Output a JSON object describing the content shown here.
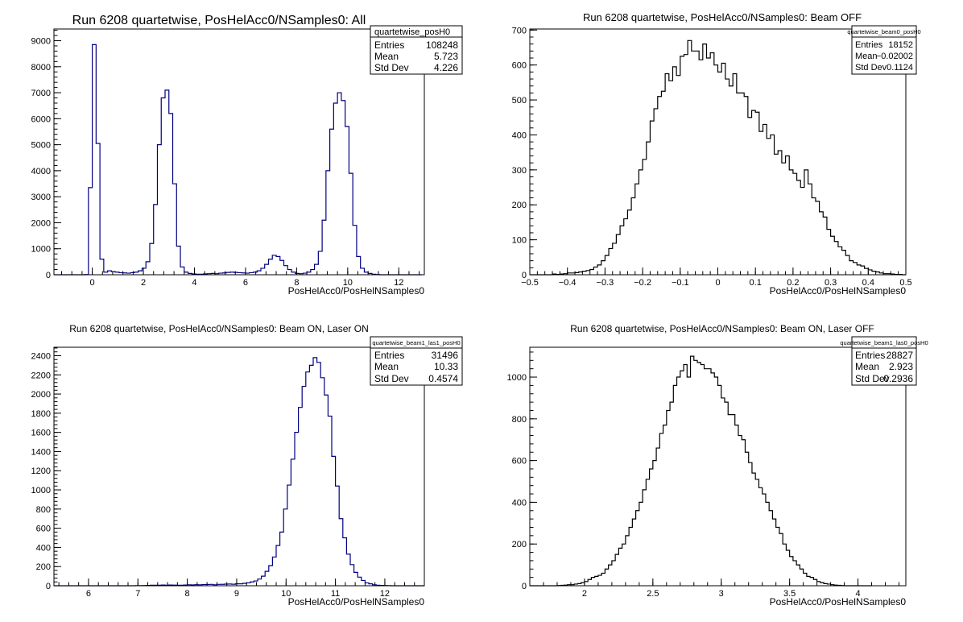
{
  "chart_data": [
    {
      "type": "bar",
      "title": "Run 6208 quartetwise, PosHelAcc0/NSamples0: All",
      "xlabel": "PosHelAcc0/PosHelNSamples0",
      "ylabel": "",
      "xlim": [
        -1.5,
        13.0
      ],
      "ylim": [
        0,
        9450
      ],
      "xticks": [
        0,
        2,
        4,
        6,
        8,
        10,
        12
      ],
      "xtick_labels": [
        "0",
        "2",
        "4",
        "6",
        "8",
        "10",
        "12"
      ],
      "yticks": [
        0,
        1000,
        2000,
        3000,
        4000,
        5000,
        6000,
        7000,
        8000,
        9000
      ],
      "ytick_labels": [
        "0",
        "1000",
        "2000",
        "3000",
        "4000",
        "5000",
        "6000",
        "7000",
        "8000",
        "9000"
      ],
      "grid": false,
      "line_color": "#000080",
      "stats": {
        "name": "quartetwise_posH0",
        "rows": [
          {
            "label": "Entries",
            "value": "108248"
          },
          {
            "label": "Mean",
            "value": "5.723"
          },
          {
            "label": "Std Dev",
            "value": "4.226"
          }
        ]
      },
      "series": [
        {
          "x0": -1.5,
          "bin_width": 0.15,
          "values": [
            0,
            0,
            0,
            0,
            0,
            0,
            0,
            0,
            10,
            3350,
            8850,
            5050,
            600,
            100,
            150,
            120,
            100,
            80,
            70,
            60,
            80,
            100,
            150,
            250,
            500,
            1200,
            2700,
            5000,
            6800,
            7100,
            6200,
            3500,
            1100,
            300,
            100,
            50,
            30,
            20,
            20,
            30,
            40,
            50,
            40,
            60,
            70,
            90,
            100,
            90,
            80,
            70,
            60,
            80,
            100,
            150,
            250,
            400,
            600,
            750,
            700,
            550,
            350,
            200,
            100,
            50,
            40,
            60,
            100,
            200,
            400,
            900,
            2100,
            4000,
            5600,
            6600,
            7000,
            6700,
            5700,
            3900,
            1900,
            700,
            250,
            100,
            50,
            20,
            10,
            0,
            0,
            0,
            0,
            0,
            0,
            0,
            0,
            0,
            0,
            0
          ]
        }
      ]
    },
    {
      "type": "bar",
      "title": "Run 6208 quartetwise, PosHelAcc0/NSamples0: Beam OFF",
      "xlabel": "PosHelAcc0/PosHelNSamples0",
      "ylabel": "",
      "xlim": [
        -0.5,
        0.5
      ],
      "ylim": [
        0,
        703
      ],
      "xticks": [
        -0.5,
        -0.4,
        -0.3,
        -0.2,
        -0.1,
        0,
        0.1,
        0.2,
        0.3,
        0.4,
        0.5
      ],
      "xtick_labels": [
        "−0.5",
        "−0.4",
        "−0.3",
        "−0.2",
        "−0.1",
        "0",
        "0.1",
        "0.2",
        "0.3",
        "0.4",
        "0.5"
      ],
      "yticks": [
        0,
        100,
        200,
        300,
        400,
        500,
        600,
        700
      ],
      "ytick_labels": [
        "0",
        "100",
        "200",
        "300",
        "400",
        "500",
        "600",
        "700"
      ],
      "grid": false,
      "line_color": "#000000",
      "stats": {
        "name": "quartetwise_beam0_posH0",
        "rows": [
          {
            "label": "Entries",
            "value": "18152"
          },
          {
            "label": "Mean",
            "value": "−0.02002"
          },
          {
            "label": "Std Dev",
            "value": "0.1124"
          }
        ]
      },
      "series": [
        {
          "x0": -0.5,
          "bin_width": 0.01,
          "values": [
            0,
            0,
            0,
            0,
            0,
            0,
            2,
            1,
            2,
            3,
            5,
            5,
            6,
            8,
            10,
            12,
            15,
            22,
            28,
            40,
            55,
            75,
            90,
            115,
            140,
            160,
            185,
            220,
            260,
            300,
            330,
            380,
            440,
            475,
            510,
            525,
            575,
            555,
            595,
            570,
            625,
            630,
            670,
            640,
            640,
            615,
            660,
            620,
            635,
            600,
            580,
            605,
            560,
            540,
            575,
            520,
            520,
            510,
            450,
            470,
            465,
            410,
            430,
            390,
            400,
            345,
            355,
            320,
            340,
            300,
            290,
            270,
            250,
            300,
            260,
            220,
            210,
            180,
            165,
            130,
            110,
            95,
            80,
            70,
            55,
            40,
            35,
            28,
            25,
            18,
            14,
            10,
            8,
            5,
            3,
            3,
            2,
            1,
            1,
            0
          ]
        }
      ]
    },
    {
      "type": "bar",
      "title": "Run 6208 quartetwise, PosHelAcc0/NSamples0: Beam ON, Laser ON",
      "xlabel": "PosHelAcc0/PosHelNSamples0",
      "ylabel": "",
      "xlim": [
        5.3,
        12.8
      ],
      "ylim": [
        0,
        2488
      ],
      "xticks": [
        6,
        7,
        8,
        9,
        10,
        11,
        12
      ],
      "xtick_labels": [
        "6",
        "7",
        "8",
        "9",
        "10",
        "11",
        "12"
      ],
      "yticks": [
        0,
        200,
        400,
        600,
        800,
        1000,
        1200,
        1400,
        1600,
        1800,
        2000,
        2200,
        2400
      ],
      "ytick_labels": [
        "0",
        "200",
        "400",
        "600",
        "800",
        "1000",
        "1200",
        "1400",
        "1600",
        "1800",
        "2000",
        "2200",
        "2400"
      ],
      "grid": false,
      "line_color": "#000080",
      "stats": {
        "name": "quartetwise_beam1_las1_posH0",
        "rows": [
          {
            "label": "Entries",
            "value": "31496"
          },
          {
            "label": "Mean",
            "value": "10.33"
          },
          {
            "label": "Std Dev",
            "value": "0.4574"
          }
        ]
      },
      "series": [
        {
          "x0": 5.3,
          "bin_width": 0.075,
          "values": [
            0,
            0,
            0,
            0,
            0,
            0,
            0,
            0,
            0,
            0,
            0,
            0,
            0,
            0,
            0,
            0,
            0,
            0,
            0,
            0,
            0,
            0,
            1,
            1,
            2,
            3,
            5,
            5,
            6,
            8,
            6,
            8,
            7,
            5,
            6,
            8,
            10,
            9,
            11,
            10,
            12,
            13,
            14,
            10,
            14,
            15,
            17,
            18,
            16,
            20,
            20,
            25,
            30,
            40,
            50,
            70,
            100,
            150,
            210,
            300,
            420,
            560,
            800,
            1050,
            1320,
            1600,
            1860,
            2080,
            2230,
            2300,
            2380,
            2330,
            2170,
            1990,
            1770,
            1350,
            1040,
            700,
            500,
            330,
            220,
            140,
            90,
            55,
            30,
            20,
            10,
            5,
            3,
            2,
            1,
            0,
            0,
            0,
            0,
            0,
            0,
            0,
            0,
            0
          ]
        }
      ]
    },
    {
      "type": "bar",
      "title": "Run 6208 quartetwise, PosHelAcc0/NSamples0: Beam ON, Laser OFF",
      "xlabel": "PosHelAcc0/PosHelNSamples0",
      "ylabel": "",
      "xlim": [
        1.6,
        4.35
      ],
      "ylim": [
        0,
        1143
      ],
      "xticks": [
        2,
        2.5,
        3,
        3.5,
        4
      ],
      "xtick_labels": [
        "2",
        "2.5",
        "3",
        "3.5",
        "4"
      ],
      "yticks": [
        0,
        200,
        400,
        600,
        800,
        1000
      ],
      "ytick_labels": [
        "0",
        "200",
        "400",
        "600",
        "800",
        "1000"
      ],
      "grid": false,
      "line_color": "#000000",
      "stats": {
        "name": "quartetwise_beam1_las0_posH0",
        "rows": [
          {
            "label": "Entries",
            "value": "28827"
          },
          {
            "label": "Mean",
            "value": "2.923"
          },
          {
            "label": "Std Dev",
            "value": "0.2936"
          }
        ]
      },
      "series": [
        {
          "x0": 1.6,
          "bin_width": 0.025,
          "values": [
            0,
            0,
            0,
            0,
            0,
            0,
            0,
            0,
            1,
            2,
            3,
            5,
            5,
            8,
            10,
            15,
            20,
            30,
            40,
            45,
            50,
            60,
            80,
            100,
            120,
            150,
            180,
            200,
            240,
            280,
            320,
            360,
            400,
            460,
            510,
            560,
            600,
            660,
            730,
            770,
            840,
            880,
            960,
            1000,
            1030,
            1060,
            1000,
            1100,
            1080,
            1070,
            1060,
            1040,
            1040,
            1020,
            1000,
            960,
            900,
            880,
            820,
            820,
            770,
            720,
            700,
            640,
            590,
            540,
            510,
            470,
            440,
            400,
            360,
            320,
            280,
            250,
            200,
            170,
            140,
            120,
            100,
            80,
            60,
            45,
            40,
            30,
            20,
            15,
            10,
            8,
            5,
            3,
            2,
            1,
            0,
            0,
            0,
            0,
            0,
            0,
            0,
            0
          ]
        }
      ]
    }
  ]
}
